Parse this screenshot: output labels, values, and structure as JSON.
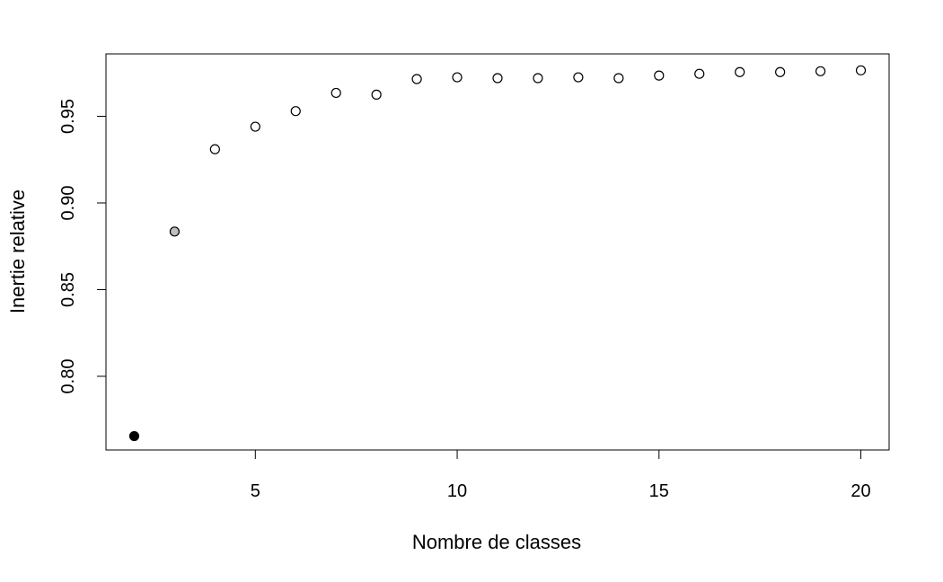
{
  "chart_data": {
    "type": "scatter",
    "title": "",
    "xlabel": "Nombre de classes",
    "ylabel": "Inertie relative",
    "xlim": [
      1.3,
      20.7
    ],
    "ylim": [
      0.7575,
      0.986
    ],
    "x_ticks": [
      5,
      10,
      15,
      20
    ],
    "y_ticks": [
      0.8,
      0.85,
      0.9,
      0.95
    ],
    "x_tick_labels": [
      "5",
      "10",
      "15",
      "20"
    ],
    "y_tick_labels": [
      "0.80",
      "0.85",
      "0.90",
      "0.95"
    ],
    "grid": false,
    "series": [
      {
        "name": "inertie",
        "points": [
          {
            "x": 2,
            "y": 0.7655,
            "fill": "#000000"
          },
          {
            "x": 3,
            "y": 0.8835,
            "fill": "#bebebe"
          },
          {
            "x": 4,
            "y": 0.931,
            "fill": "#ffffff"
          },
          {
            "x": 5,
            "y": 0.944,
            "fill": "#ffffff"
          },
          {
            "x": 6,
            "y": 0.953,
            "fill": "#ffffff"
          },
          {
            "x": 7,
            "y": 0.9635,
            "fill": "#ffffff"
          },
          {
            "x": 8,
            "y": 0.9625,
            "fill": "#ffffff"
          },
          {
            "x": 9,
            "y": 0.9715,
            "fill": "#ffffff"
          },
          {
            "x": 10,
            "y": 0.9725,
            "fill": "#ffffff"
          },
          {
            "x": 11,
            "y": 0.972,
            "fill": "#ffffff"
          },
          {
            "x": 12,
            "y": 0.972,
            "fill": "#ffffff"
          },
          {
            "x": 13,
            "y": 0.9725,
            "fill": "#ffffff"
          },
          {
            "x": 14,
            "y": 0.972,
            "fill": "#ffffff"
          },
          {
            "x": 15,
            "y": 0.9735,
            "fill": "#ffffff"
          },
          {
            "x": 16,
            "y": 0.9745,
            "fill": "#ffffff"
          },
          {
            "x": 17,
            "y": 0.9755,
            "fill": "#ffffff"
          },
          {
            "x": 18,
            "y": 0.9755,
            "fill": "#ffffff"
          },
          {
            "x": 19,
            "y": 0.976,
            "fill": "#ffffff"
          },
          {
            "x": 20,
            "y": 0.9765,
            "fill": "#ffffff"
          }
        ]
      }
    ]
  }
}
